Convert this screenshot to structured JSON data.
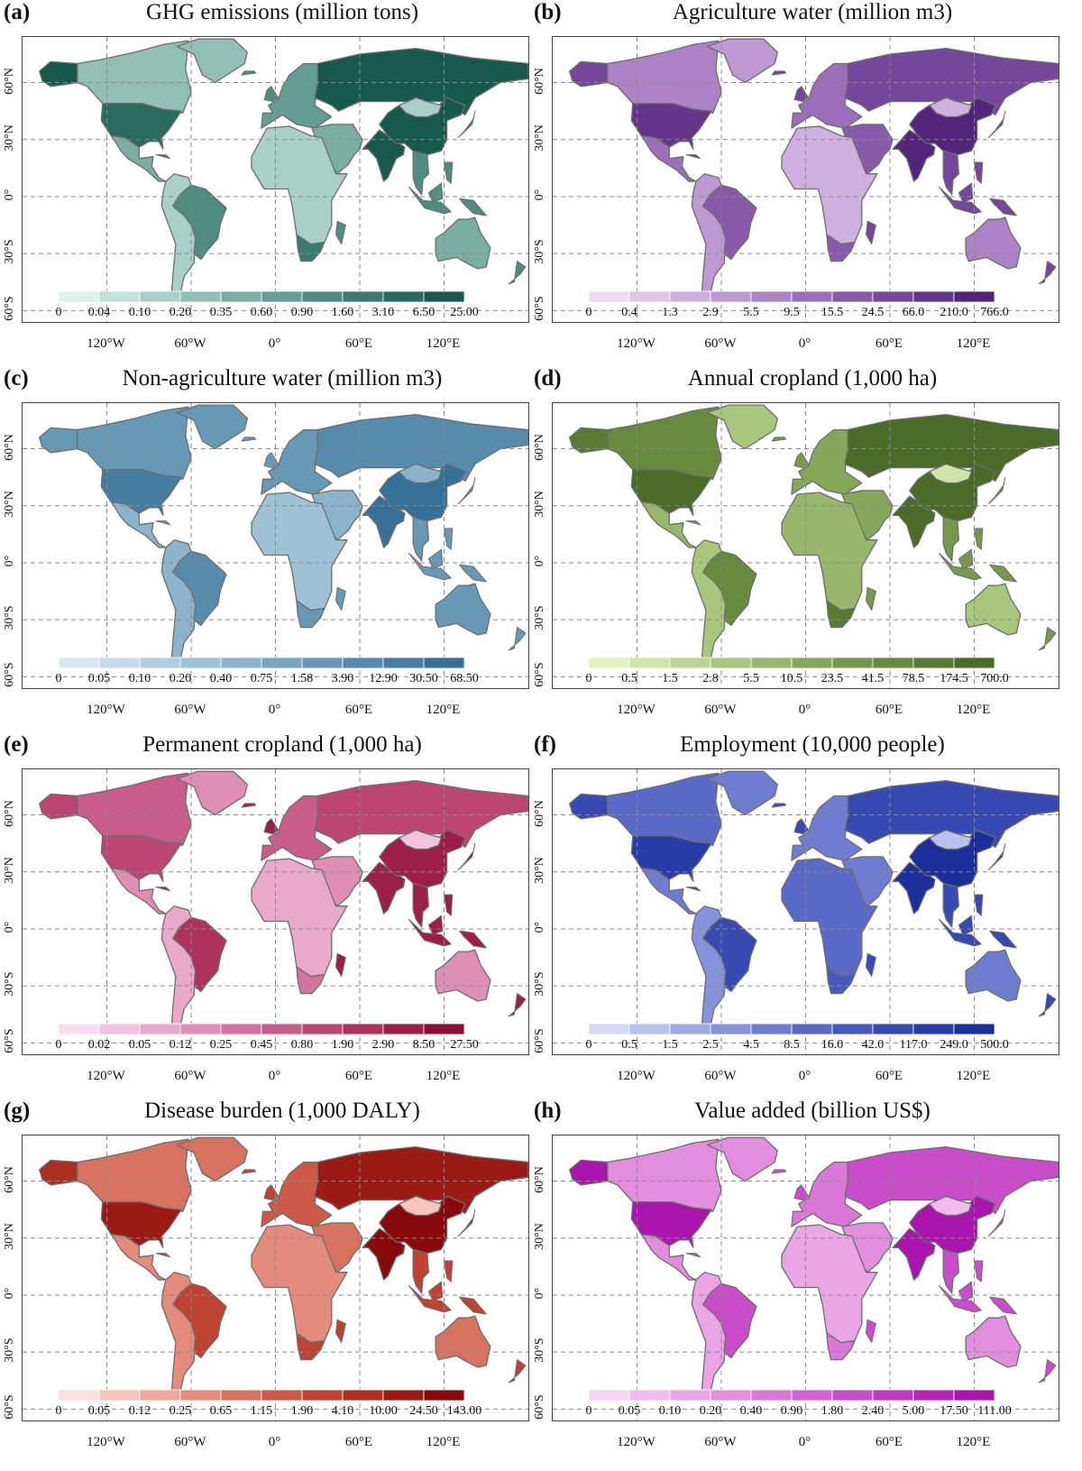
{
  "lon_labels": [
    "120°W",
    "60°W",
    "0°",
    "60°E",
    "120°E"
  ],
  "lat_labels": [
    "60°N",
    "30°N",
    "0°",
    "30°S",
    "60°S"
  ],
  "panels": [
    {
      "id": "a",
      "label": "(a)",
      "title": "GHG emissions (million tons)",
      "ticks": [
        "0",
        "0.04",
        "0.10",
        "0.20",
        "0.35",
        "0.60",
        "0.90",
        "1.60",
        "3.10",
        "6.50",
        "25.00"
      ],
      "colors": [
        "#dbf1ec",
        "#c2e1da",
        "#a9d0c8",
        "#91bfb5",
        "#7aaea3",
        "#649d91",
        "#4f8c7f",
        "#3b7b6e",
        "#296a5d",
        "#175a4c"
      ],
      "regions": {
        "north_america": 8,
        "canada": 3,
        "alaska": 9,
        "greenland": 3,
        "central_america": 4,
        "south_america": 2,
        "brazil": 6,
        "europe": 5,
        "russia": 9,
        "middle_east": 4,
        "africa": 2,
        "south_africa": 7,
        "india": 9,
        "china": 9,
        "mongolia": 2,
        "se_asia": 6,
        "australia": 4
      }
    },
    {
      "id": "b",
      "label": "(b)",
      "title": "Agriculture water (million m3)",
      "ticks": [
        "0",
        "0.4",
        "1.3",
        "2.9",
        "5.5",
        "9.5",
        "15.5",
        "24.5",
        "66.0",
        "210.0",
        "766.0"
      ],
      "colors": [
        "#eedcf4",
        "#dfc5ea",
        "#cfafdf",
        "#be99d3",
        "#ac83c6",
        "#9a6eb9",
        "#875aaa",
        "#75479b",
        "#63358b",
        "#51257a"
      ],
      "regions": {
        "north_america": 8,
        "canada": 4,
        "alaska": 7,
        "greenland": 3,
        "central_america": 5,
        "south_america": 3,
        "brazil": 6,
        "europe": 5,
        "russia": 7,
        "middle_east": 6,
        "africa": 2,
        "south_africa": 6,
        "india": 9,
        "china": 9,
        "mongolia": 2,
        "se_asia": 7,
        "australia": 4
      }
    },
    {
      "id": "c",
      "label": "(c)",
      "title": "Non-agriculture water (million m3)",
      "ticks": [
        "0",
        "0.05",
        "0.10",
        "0.20",
        "0.40",
        "0.75",
        "1.58",
        "3.90",
        "12.90",
        "30.50",
        "68.50"
      ],
      "colors": [
        "#d9e8ef",
        "#c6dbe6",
        "#b2cedd",
        "#9fc1d4",
        "#8bb3ca",
        "#79a6c0",
        "#6798b6",
        "#568bac",
        "#467ea2",
        "#377197"
      ],
      "regions": {
        "north_america": 8,
        "canada": 6,
        "alaska": 6,
        "greenland": 6,
        "central_america": 4,
        "south_america": 4,
        "brazil": 7,
        "europe": 6,
        "russia": 7,
        "middle_east": 4,
        "africa": 3,
        "south_africa": 6,
        "india": 9,
        "china": 9,
        "mongolia": 4,
        "se_asia": 6,
        "australia": 6
      }
    },
    {
      "id": "d",
      "label": "(d)",
      "title": "Annual cropland (1,000 ha)",
      "ticks": [
        "0",
        "0.5",
        "1.5",
        "2.8",
        "5.5",
        "10.5",
        "23.5",
        "41.5",
        "78.5",
        "174.5",
        "700.0"
      ],
      "colors": [
        "#e4f2bf",
        "#d0e4a8",
        "#bcd593",
        "#a9c67f",
        "#97b76c",
        "#86a85b",
        "#76994b",
        "#668a3e",
        "#577b32",
        "#4a6c28"
      ],
      "regions": {
        "north_america": 9,
        "canada": 7,
        "alaska": 8,
        "greenland": 3,
        "central_america": 4,
        "south_america": 3,
        "brazil": 7,
        "europe": 5,
        "russia": 9,
        "middle_east": 5,
        "africa": 4,
        "south_africa": 8,
        "india": 9,
        "china": 9,
        "mongolia": 1,
        "se_asia": 6,
        "australia": 3
      }
    },
    {
      "id": "e",
      "label": "(e)",
      "title": "Permanent cropland (1,000 ha)",
      "ticks": [
        "0",
        "0.02",
        "0.05",
        "0.12",
        "0.25",
        "0.45",
        "0.80",
        "1.90",
        "2.90",
        "8.50",
        "27.50"
      ],
      "colors": [
        "#fadcef",
        "#f2c3dd",
        "#e9a9c9",
        "#df8fb4",
        "#d5759f",
        "#c95d89",
        "#bc4673",
        "#ad325e",
        "#9c1f4a",
        "#8a0c37"
      ],
      "regions": {
        "north_america": 6,
        "canada": 5,
        "alaska": 6,
        "greenland": 3,
        "central_america": 3,
        "south_america": 2,
        "brazil": 7,
        "europe": 5,
        "russia": 6,
        "middle_east": 3,
        "africa": 2,
        "south_africa": 4,
        "india": 8,
        "china": 8,
        "mongolia": 1,
        "se_asia": 8,
        "australia": 3
      }
    },
    {
      "id": "f",
      "label": "(f)",
      "title": "Employment (10,000 people)",
      "ticks": [
        "0",
        "0.5",
        "1.5",
        "2.5",
        "4.5",
        "8.5",
        "16.0",
        "42.0",
        "117.0",
        "249.0",
        "500.0"
      ],
      "colors": [
        "#d3d9f6",
        "#b8c2ee",
        "#9eaae5",
        "#8593db",
        "#6e7dd0",
        "#5a6ac6",
        "#4858bc",
        "#3849b1",
        "#293ba6",
        "#1c2e9a"
      ],
      "regions": {
        "north_america": 8,
        "canada": 5,
        "alaska": 7,
        "greenland": 4,
        "central_america": 4,
        "south_america": 3,
        "brazil": 7,
        "europe": 4,
        "russia": 7,
        "middle_east": 4,
        "africa": 5,
        "south_africa": 6,
        "india": 9,
        "china": 9,
        "mongolia": 1,
        "se_asia": 7,
        "australia": 4
      }
    },
    {
      "id": "g",
      "label": "(g)",
      "title": "Disease burden (1,000 DALY)",
      "ticks": [
        "0",
        "0.05",
        "0.12",
        "0.25",
        "0.65",
        "1.15",
        "1.90",
        "4.10",
        "10.00",
        "24.50",
        "143.00"
      ],
      "colors": [
        "#fbe1dc",
        "#f5c5bb",
        "#eda89b",
        "#e38c7c",
        "#d87260",
        "#cc5a48",
        "#be4333",
        "#ad2f22",
        "#9b1c15",
        "#880a0a"
      ],
      "regions": {
        "north_america": 8,
        "canada": 4,
        "alaska": 7,
        "greenland": 4,
        "central_america": 3,
        "south_america": 3,
        "brazil": 6,
        "europe": 5,
        "russia": 8,
        "middle_east": 4,
        "africa": 3,
        "south_africa": 6,
        "india": 9,
        "china": 9,
        "mongolia": 1,
        "se_asia": 6,
        "australia": 4
      }
    },
    {
      "id": "h",
      "label": "(h)",
      "title": "Value added (billion US$)",
      "ticks": [
        "0",
        "0.05",
        "0.10",
        "0.20",
        "0.40",
        "0.90",
        "1.80",
        "2.40",
        "5.00",
        "17.50",
        "111.00"
      ],
      "colors": [
        "#f7d3f3",
        "#f0bced",
        "#e9a5e6",
        "#e28edf",
        "#da78d8",
        "#d262d1",
        "#c94dc9",
        "#bf39c1",
        "#b526b8",
        "#aa15ae"
      ],
      "regions": {
        "north_america": 9,
        "canada": 3,
        "alaska": 9,
        "greenland": 3,
        "central_america": 3,
        "south_america": 2,
        "brazil": 6,
        "europe": 4,
        "russia": 6,
        "middle_east": 3,
        "africa": 2,
        "south_africa": 4,
        "india": 9,
        "china": 9,
        "mongolia": 1,
        "se_asia": 6,
        "australia": 3
      }
    }
  ]
}
